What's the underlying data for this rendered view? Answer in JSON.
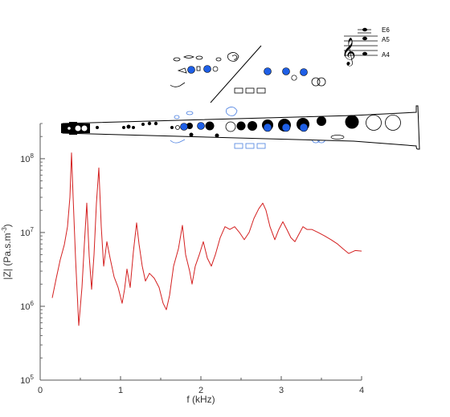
{
  "chart_data": {
    "type": "line",
    "title": "",
    "xlabel": "f (kHz)",
    "ylabel_main": "|Z| (Pa.s.m",
    "ylabel_sup": "-3",
    "ylabel_tail": ")",
    "xlim": [
      0,
      4
    ],
    "ylim": [
      100000,
      300000000
    ],
    "yscale": "log",
    "grid": false,
    "x_ticks": [
      "0",
      "1",
      "2",
      "3",
      "4"
    ],
    "y_ticks": [
      {
        "base": "10",
        "exp": "5",
        "value": 100000
      },
      {
        "base": "10",
        "exp": "6",
        "value": 1000000
      },
      {
        "base": "10",
        "exp": "7",
        "value": 10000000
      },
      {
        "base": "10",
        "exp": "8",
        "value": 100000000
      }
    ],
    "line_color": "#d42020",
    "series": [
      {
        "name": "",
        "x": [
          0.15,
          0.2,
          0.25,
          0.3,
          0.34,
          0.37,
          0.39,
          0.41,
          0.44,
          0.48,
          0.52,
          0.55,
          0.58,
          0.61,
          0.64,
          0.67,
          0.7,
          0.73,
          0.76,
          0.79,
          0.83,
          0.87,
          0.92,
          0.97,
          1.02,
          1.05,
          1.08,
          1.12,
          1.16,
          1.2,
          1.23,
          1.27,
          1.31,
          1.36,
          1.42,
          1.48,
          1.53,
          1.57,
          1.61,
          1.66,
          1.72,
          1.77,
          1.81,
          1.86,
          1.89,
          1.93,
          1.98,
          2.03,
          2.08,
          2.13,
          2.18,
          2.24,
          2.3,
          2.36,
          2.42,
          2.48,
          2.54,
          2.6,
          2.66,
          2.72,
          2.77,
          2.81,
          2.86,
          2.92,
          2.97,
          3.02,
          3.07,
          3.12,
          3.17,
          3.22,
          3.27,
          3.32,
          3.38,
          3.46,
          3.54,
          3.62,
          3.7,
          3.77,
          3.84,
          3.92,
          4.0
        ],
        "y": [
          1300000,
          2400000,
          4300000,
          6800000,
          12000000,
          30000000,
          120000000,
          30000000,
          4500000,
          550000,
          1800000,
          7000000,
          25000000,
          4800000,
          1700000,
          5000000,
          25000000,
          75000000,
          12000000,
          3500000,
          7500000,
          4500000,
          2500000,
          1800000,
          1100000,
          1700000,
          3200000,
          1800000,
          5500000,
          13500000,
          7000000,
          3500000,
          2200000,
          2800000,
          2400000,
          1800000,
          1100000,
          900000,
          1400000,
          3500000,
          6000000,
          12500000,
          5000000,
          3000000,
          2000000,
          3500000,
          5000000,
          7500000,
          4500000,
          3500000,
          5000000,
          8500000,
          12000000,
          11000000,
          12000000,
          10000000,
          8000000,
          10000000,
          15500000,
          21000000,
          25000000,
          20000000,
          12000000,
          8000000,
          11000000,
          14000000,
          11000000,
          8500000,
          7500000,
          9500000,
          12000000,
          11000000,
          11000000,
          10000000,
          9000000,
          8000000,
          7000000,
          6000000,
          5200000,
          5700000,
          5600000
        ]
      }
    ]
  },
  "notes": {
    "e6": "E6",
    "a5": "A5",
    "a4": "A4"
  },
  "colors": {
    "axis": "#555555",
    "instrument": "#000000",
    "key_blue": "#1e5fe6",
    "ghost_blue": "#4a7fe0"
  }
}
